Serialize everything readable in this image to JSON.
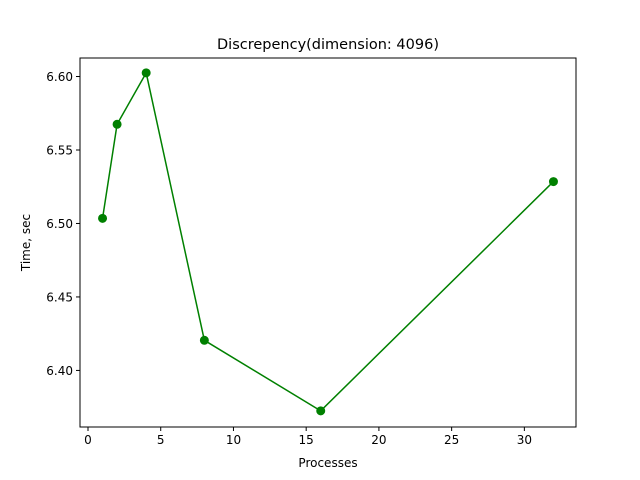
{
  "chart_data": {
    "type": "line",
    "title": "Discrepency(dimension: 4096)",
    "xlabel": "Processes",
    "ylabel": "Time, sec",
    "xlim": [
      -0.55,
      33.55
    ],
    "ylim": [
      6.3615,
      6.6126
    ],
    "xticks": [
      0,
      5,
      10,
      15,
      20,
      25,
      30
    ],
    "yticks": [
      6.4,
      6.45,
      6.5,
      6.55,
      6.6
    ],
    "xtick_labels": [
      "0",
      "5",
      "10",
      "15",
      "20",
      "25",
      "30"
    ],
    "ytick_labels": [
      "6.40",
      "6.45",
      "6.50",
      "6.55",
      "6.60"
    ],
    "grid": false,
    "series": [
      {
        "color": "#008000",
        "marker": "circle",
        "x": [
          1,
          2,
          4,
          8,
          16,
          32
        ],
        "y": [
          6.5035,
          6.5675,
          6.6025,
          6.4205,
          6.3725,
          6.5285
        ]
      }
    ]
  }
}
